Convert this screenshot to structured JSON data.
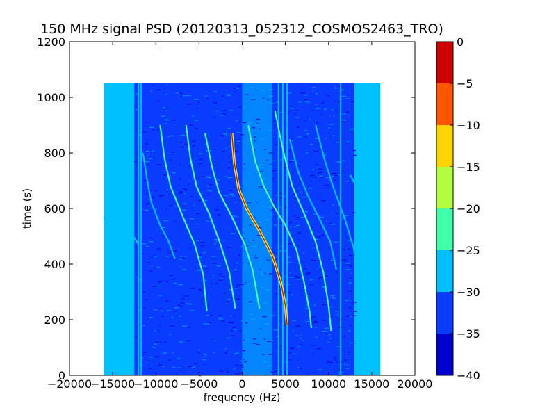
{
  "chart_data": {
    "type": "heatmap",
    "title": "150 MHz signal PSD (20120313_052312_COSMOS2463_TRO)",
    "xlabel": "frequency (Hz)",
    "ylabel": "time (s)",
    "xlim": [
      -20000,
      20000
    ],
    "ylim": [
      0,
      1200
    ],
    "x_ticks": [
      -20000,
      -15000,
      -10000,
      -5000,
      0,
      5000,
      10000,
      15000,
      20000
    ],
    "x_tick_labels": [
      "−20000",
      "−15000",
      "−10000",
      "−5000",
      "0",
      "5000",
      "10000",
      "15000",
      "20000"
    ],
    "y_ticks": [
      0,
      200,
      400,
      600,
      800,
      1000,
      1200
    ],
    "y_tick_labels": [
      "0",
      "200",
      "400",
      "600",
      "800",
      "1000",
      "1200"
    ],
    "data_extent": {
      "x": [
        -16000,
        16000
      ],
      "y": [
        0,
        1050
      ]
    },
    "colorbar": {
      "range": [
        -40,
        0
      ],
      "ticks": [
        0,
        -5,
        -10,
        -15,
        -20,
        -25,
        -30,
        -35,
        -40
      ],
      "tick_labels": [
        "0",
        "−5",
        "−10",
        "−15",
        "−20",
        "−25",
        "−30",
        "−35",
        "−40"
      ],
      "levels": [
        {
          "from": -40,
          "to": -35,
          "color": "#0000cd"
        },
        {
          "from": -35,
          "to": -30,
          "color": "#0a3cff"
        },
        {
          "from": -30,
          "to": -25,
          "color": "#00bfff"
        },
        {
          "from": -25,
          "to": -20,
          "color": "#40ffa6"
        },
        {
          "from": -20,
          "to": -15,
          "color": "#b2ff40"
        },
        {
          "from": -15,
          "to": -10,
          "color": "#ffd300"
        },
        {
          "from": -10,
          "to": -5,
          "color": "#ff5500"
        },
        {
          "from": -5,
          "to": 0,
          "color": "#cc0000"
        }
      ]
    },
    "background_levels": {
      "edge_band": {
        "x_ranges": [
          [
            -16000,
            -12500
          ],
          [
            13000,
            16000
          ]
        ],
        "color": "#00bfff"
      },
      "center_band": {
        "x_range": [
          -12500,
          13000
        ],
        "color": "#0a3cff"
      },
      "center_lighter_band": {
        "x_range": [
          0,
          3500
        ],
        "color": "#00bfff"
      }
    },
    "vertical_lines": [
      {
        "x": -12000,
        "color": "#00bfff"
      },
      {
        "x": -11700,
        "color": "#00bfff"
      },
      {
        "x": 4200,
        "color": "#00bfff"
      },
      {
        "x": 4700,
        "color": "#00bfff"
      },
      {
        "x": 5200,
        "color": "#00bfff"
      },
      {
        "x": 11400,
        "color": "#00bfff"
      }
    ],
    "traces": [
      {
        "color": "#00bfff",
        "points": [
          [
            -16000,
            570
          ],
          [
            -14800,
            510
          ],
          [
            -13500,
            460
          ],
          [
            -12600,
            410
          ]
        ]
      },
      {
        "color": "#00bfff",
        "points": [
          [
            -15000,
            650
          ],
          [
            -14000,
            580
          ],
          [
            -13000,
            520
          ],
          [
            -12000,
            470
          ]
        ]
      },
      {
        "color": "#00bfff",
        "points": [
          [
            -11500,
            800
          ],
          [
            -11000,
            700
          ],
          [
            -10500,
            620
          ],
          [
            -9500,
            540
          ],
          [
            -8500,
            480
          ],
          [
            -7800,
            420
          ]
        ]
      },
      {
        "color": "#40ffa6",
        "points": [
          [
            -9500,
            900
          ],
          [
            -9000,
            780
          ],
          [
            -8300,
            680
          ],
          [
            -7000,
            580
          ],
          [
            -5500,
            470
          ],
          [
            -4500,
            360
          ],
          [
            -4100,
            230
          ]
        ]
      },
      {
        "color": "#40ffa6",
        "points": [
          [
            -6500,
            900
          ],
          [
            -6000,
            780
          ],
          [
            -5300,
            680
          ],
          [
            -3800,
            580
          ],
          [
            -2500,
            470
          ],
          [
            -1500,
            370
          ],
          [
            -800,
            240
          ]
        ]
      },
      {
        "color": "#40ffa6",
        "points": [
          [
            -4300,
            870
          ],
          [
            -3500,
            750
          ],
          [
            -2700,
            660
          ],
          [
            -1200,
            570
          ],
          [
            300,
            470
          ],
          [
            1200,
            380
          ],
          [
            2000,
            240
          ]
        ]
      },
      {
        "color": "#cc0000",
        "points": [
          [
            -1200,
            870
          ],
          [
            -900,
            760
          ],
          [
            -400,
            670
          ],
          [
            500,
            600
          ],
          [
            2000,
            520
          ],
          [
            3500,
            430
          ],
          [
            4500,
            330
          ],
          [
            5000,
            250
          ],
          [
            5200,
            180
          ]
        ]
      },
      {
        "color": "#40ffa6",
        "points": [
          [
            700,
            900
          ],
          [
            1500,
            770
          ],
          [
            2500,
            680
          ],
          [
            3800,
            600
          ],
          [
            5000,
            540
          ],
          [
            6300,
            450
          ],
          [
            7200,
            330
          ],
          [
            7800,
            230
          ],
          [
            8000,
            170
          ]
        ]
      },
      {
        "color": "#40ffa6",
        "points": [
          [
            3800,
            950
          ],
          [
            4800,
            800
          ],
          [
            5800,
            680
          ],
          [
            7200,
            580
          ],
          [
            8500,
            480
          ],
          [
            9400,
            370
          ],
          [
            10000,
            250
          ],
          [
            10300,
            160
          ]
        ]
      },
      {
        "color": "#00bfff",
        "points": [
          [
            5500,
            850
          ],
          [
            6500,
            730
          ],
          [
            7700,
            640
          ],
          [
            9000,
            560
          ],
          [
            10200,
            480
          ],
          [
            10900,
            380
          ]
        ]
      },
      {
        "color": "#00bfff",
        "points": [
          [
            8500,
            900
          ],
          [
            9500,
            780
          ],
          [
            10500,
            680
          ],
          [
            11800,
            570
          ],
          [
            12800,
            470
          ],
          [
            13500,
            380
          ]
        ]
      },
      {
        "color": "#00bfff",
        "points": [
          [
            12500,
            720
          ],
          [
            13300,
            680
          ],
          [
            14500,
            640
          ],
          [
            15800,
            580
          ]
        ]
      }
    ]
  }
}
